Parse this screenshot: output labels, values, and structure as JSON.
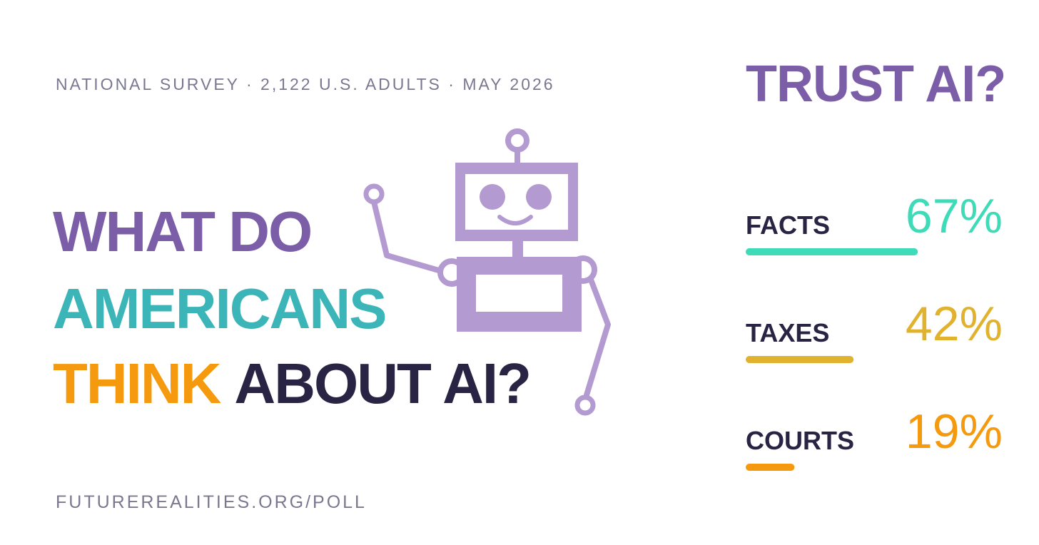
{
  "page": {
    "kicker": "NATIONAL SURVEY · 2,122 U.S. ADULTS · MAY 2026",
    "headline": [
      [
        "WHAT DO"
      ],
      [
        "AMERICANS"
      ],
      [
        "THINK",
        "ABOUT AI?"
      ]
    ],
    "footer": "FUTUREREALITIES.ORG/POLL"
  },
  "chart_data": {
    "type": "bar",
    "title": "TRUST AI?",
    "categories": [
      "FACTS",
      "TAXES",
      "COURTS"
    ],
    "values": [
      67,
      42,
      19
    ],
    "value_labels": [
      "67%",
      "42%",
      "19%"
    ],
    "colors": [
      "#3ddbb8",
      "#e0b22e",
      "#f59a0e"
    ]
  }
}
